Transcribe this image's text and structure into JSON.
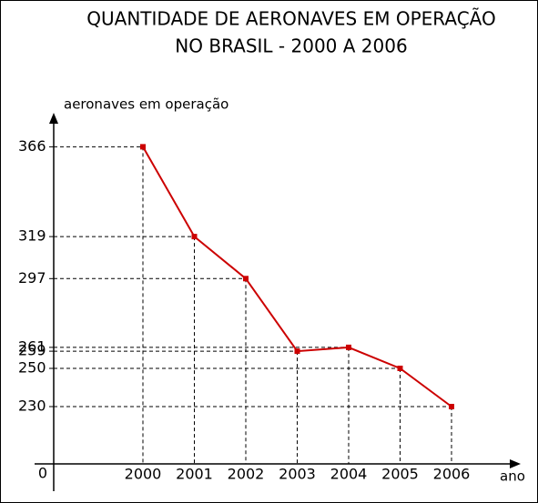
{
  "chart_data": {
    "type": "line",
    "title": [
      "QUANTIDADE DE AERONAVES EM OPERAÇÃO",
      "NO BRASIL - 2000 A 2006"
    ],
    "y_label": "aeronaves em operação",
    "x_label": "ano",
    "origin_label": "0",
    "categories": [
      "2000",
      "2001",
      "2002",
      "2003",
      "2004",
      "2005",
      "2006"
    ],
    "values": [
      366,
      319,
      297,
      259,
      261,
      250,
      230
    ],
    "color": "#cc0000",
    "ylim": [
      200,
      380
    ],
    "yticks": [
      366,
      319,
      297,
      261,
      259,
      250,
      230
    ],
    "grid": false
  }
}
